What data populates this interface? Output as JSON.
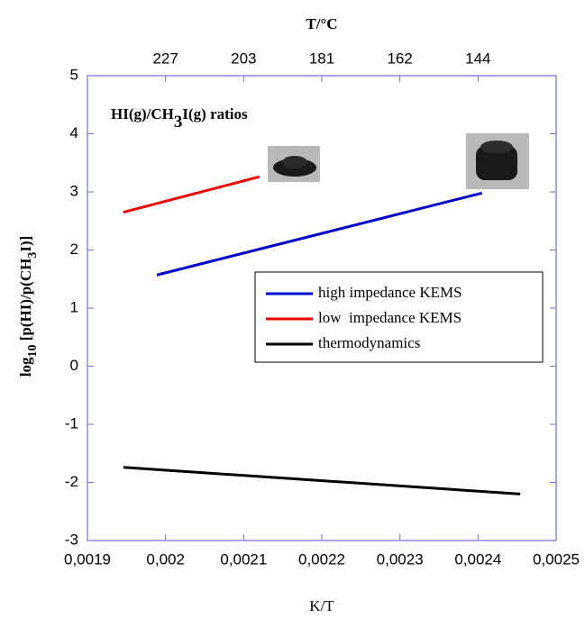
{
  "chart_data": {
    "type": "line",
    "title": [
      "HI(g)/CH",
      "3",
      "I(g) ratios"
    ],
    "ylabel": [
      "log",
      "10",
      " [p(HI)/p(CH",
      "3",
      "I)]"
    ],
    "xlabel": "K/T",
    "x2label": "T/°C",
    "xlim": [
      0.0019,
      0.0025
    ],
    "xticks": [
      {
        "value": 0.0019,
        "label": "0,0019"
      },
      {
        "value": 0.002,
        "label": "0,002"
      },
      {
        "value": 0.0021,
        "label": "0,0021"
      },
      {
        "value": 0.0022,
        "label": "0,0022"
      },
      {
        "value": 0.0023,
        "label": "0,0023"
      },
      {
        "value": 0.0024,
        "label": "0,0024"
      },
      {
        "value": 0.0025,
        "label": "0,0025"
      }
    ],
    "x2ticks": [
      {
        "value": 0.002,
        "label": "227"
      },
      {
        "value": 0.0021,
        "label": "203"
      },
      {
        "value": 0.0022,
        "label": "181"
      },
      {
        "value": 0.0023,
        "label": "162"
      },
      {
        "value": 0.0024,
        "label": "144"
      }
    ],
    "ylim": [
      -3,
      5
    ],
    "yticks": [
      -3,
      -2,
      -1,
      0,
      1,
      2,
      3,
      4,
      5
    ],
    "legend": "right",
    "series": [
      {
        "name": "high impedance KEMS",
        "color": "#0000cc",
        "x": [
          0.001989,
          0.002405
        ],
        "values": [
          1.57,
          2.98
        ]
      },
      {
        "name": "low  impedance KEMS",
        "color": "#ee0000",
        "x": [
          0.001946,
          0.00212
        ],
        "values": [
          2.65,
          3.26
        ]
      },
      {
        "name": "thermodynamics",
        "color": "#000000",
        "x": [
          0.001946,
          0.002454
        ],
        "values": [
          -1.74,
          -2.2
        ]
      }
    ]
  }
}
